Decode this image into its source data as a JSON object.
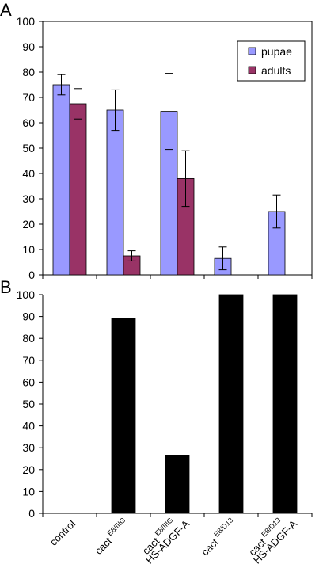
{
  "chart_data": [
    {
      "panel": "A",
      "type": "bar",
      "categories": [
        "control",
        "cact E8/IIIG",
        "cact E8/IIIG HS-ADGF-A",
        "cact E8/D13",
        "cact E8/D13 HS-ADGF-A"
      ],
      "series": [
        {
          "name": "pupae",
          "color": "#9999ff",
          "values": [
            75,
            65,
            64.5,
            6.5,
            25
          ],
          "err": [
            4,
            8,
            15,
            4.5,
            6.5
          ]
        },
        {
          "name": "adults",
          "color": "#993366",
          "values": [
            67.5,
            7.5,
            38,
            0,
            0
          ],
          "err": [
            6,
            2,
            11,
            0,
            0
          ]
        }
      ],
      "ylim": [
        0,
        100
      ],
      "yticks": [
        0,
        10,
        20,
        30,
        40,
        50,
        60,
        70,
        80,
        90,
        100
      ],
      "legend_position": "top-right",
      "grid": false
    },
    {
      "panel": "B",
      "type": "bar",
      "categories": [
        "control",
        "cact E8/IIIG",
        "cact E8/IIIG HS-ADGF-A",
        "cact E8/D13",
        "cact E8/D13 HS-ADGF-A"
      ],
      "series": [
        {
          "color": "#000000",
          "values": [
            0,
            89,
            26.5,
            100,
            100
          ]
        }
      ],
      "ylim": [
        0,
        100
      ],
      "yticks": [
        0,
        10,
        20,
        30,
        40,
        50,
        60,
        70,
        80,
        90,
        100
      ],
      "grid": false
    }
  ],
  "category_labels": [
    {
      "main": "control",
      "sup": "",
      "line2": ""
    },
    {
      "main": "cact",
      "sup": "E8/IIIG",
      "line2": ""
    },
    {
      "main": "cact",
      "sup": "E8/IIIG",
      "line2": "HS-ADGF-A"
    },
    {
      "main": "cact",
      "sup": "E8/D13",
      "line2": ""
    },
    {
      "main": "cact",
      "sup": "E8/D13",
      "line2": "HS-ADGF-A"
    }
  ]
}
